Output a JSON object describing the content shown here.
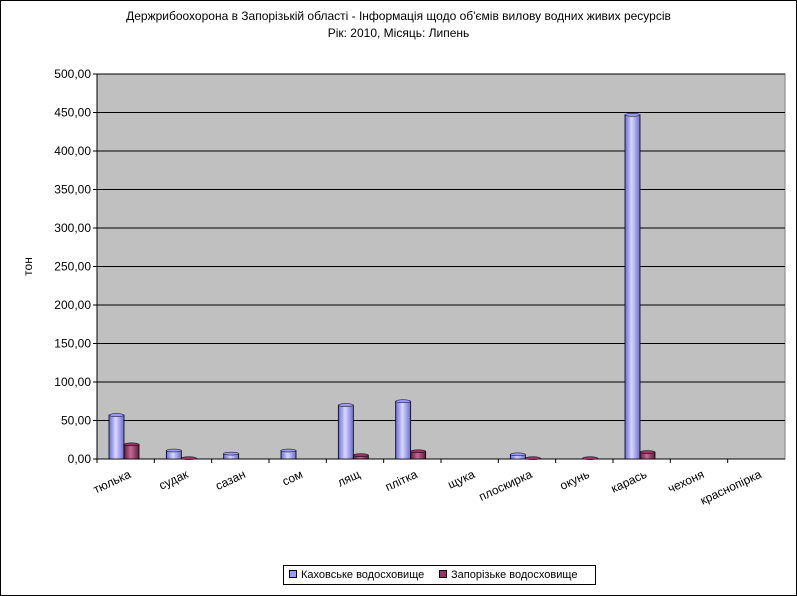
{
  "title_line1": "Держрибоохорона в Запорізькій області - Інформація щодо об'ємів вилову водних живих ресурсів",
  "title_line2": "Рік: 2010, Місяць: Липень",
  "chart_data": {
    "type": "bar",
    "title": "Держрибоохорона в Запорізькій області - Інформація щодо об'ємів вилову водних живих ресурсів",
    "subtitle": "Рік: 2010, Місяць: Липень",
    "xlabel": "",
    "ylabel": "тон",
    "ylim": [
      0,
      500
    ],
    "y_ticks": [
      "0,00",
      "50,00",
      "100,00",
      "150,00",
      "200,00",
      "250,00",
      "300,00",
      "350,00",
      "400,00",
      "450,00",
      "500,00"
    ],
    "grid": true,
    "legend_position": "bottom",
    "categories": [
      "тюлька",
      "судак",
      "сазан",
      "сом",
      "лящ",
      "плітка",
      "щука",
      "плоскирка",
      "окунь",
      "карась",
      "чехоня",
      "краснопірка"
    ],
    "series": [
      {
        "name": "Каховське водосховище",
        "color": "#9999ff",
        "values": [
          57,
          11,
          7,
          11,
          70,
          75,
          0,
          6,
          0,
          447,
          0,
          0
        ]
      },
      {
        "name": "Запорізьке водосховище",
        "color": "#993366",
        "values": [
          19,
          1,
          0,
          0,
          5,
          10,
          0,
          1,
          1,
          9,
          0,
          0
        ]
      }
    ],
    "plot_background": "#c0c0c0"
  }
}
